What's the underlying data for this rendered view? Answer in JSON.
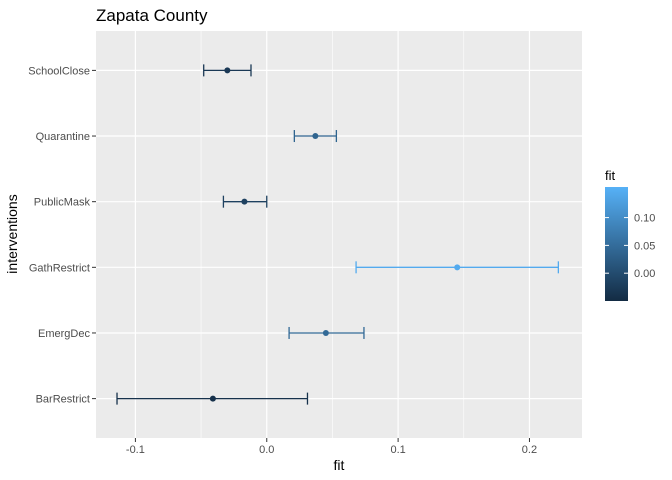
{
  "chart_data": {
    "type": "scatter",
    "title": "Zapata County",
    "xlabel": "fit",
    "ylabel": "interventions",
    "xlim": [
      -0.13,
      0.24
    ],
    "x_ticks": [
      -0.1,
      0.0,
      0.1,
      0.2
    ],
    "x_tick_labels": [
      "-0.1",
      "0.0",
      "0.1",
      "0.2"
    ],
    "grid": true,
    "legend_position": "right",
    "categories": [
      "SchoolClose",
      "Quarantine",
      "PublicMask",
      "GathRestrict",
      "EmergDec",
      "BarRestrict"
    ],
    "points": [
      {
        "label": "SchoolClose",
        "fit": -0.03,
        "lower": -0.048,
        "upper": -0.012
      },
      {
        "label": "Quarantine",
        "fit": 0.037,
        "lower": 0.021,
        "upper": 0.053
      },
      {
        "label": "PublicMask",
        "fit": -0.017,
        "lower": -0.033,
        "upper": 0.0
      },
      {
        "label": "GathRestrict",
        "fit": 0.145,
        "lower": 0.068,
        "upper": 0.222
      },
      {
        "label": "EmergDec",
        "fit": 0.045,
        "lower": 0.017,
        "upper": 0.074
      },
      {
        "label": "BarRestrict",
        "fit": -0.041,
        "lower": -0.114,
        "upper": 0.031
      }
    ],
    "legend": {
      "title": "fit",
      "min": -0.05,
      "max": 0.155,
      "ticks": [
        0.0,
        0.05,
        0.1
      ],
      "tick_labels": [
        "0.00",
        "0.05",
        "0.10"
      ],
      "low_color": "#132B43",
      "high_color": "#56B1F7"
    },
    "panel_background": "#EBEBEB",
    "grid_color": "#FFFFFF"
  }
}
